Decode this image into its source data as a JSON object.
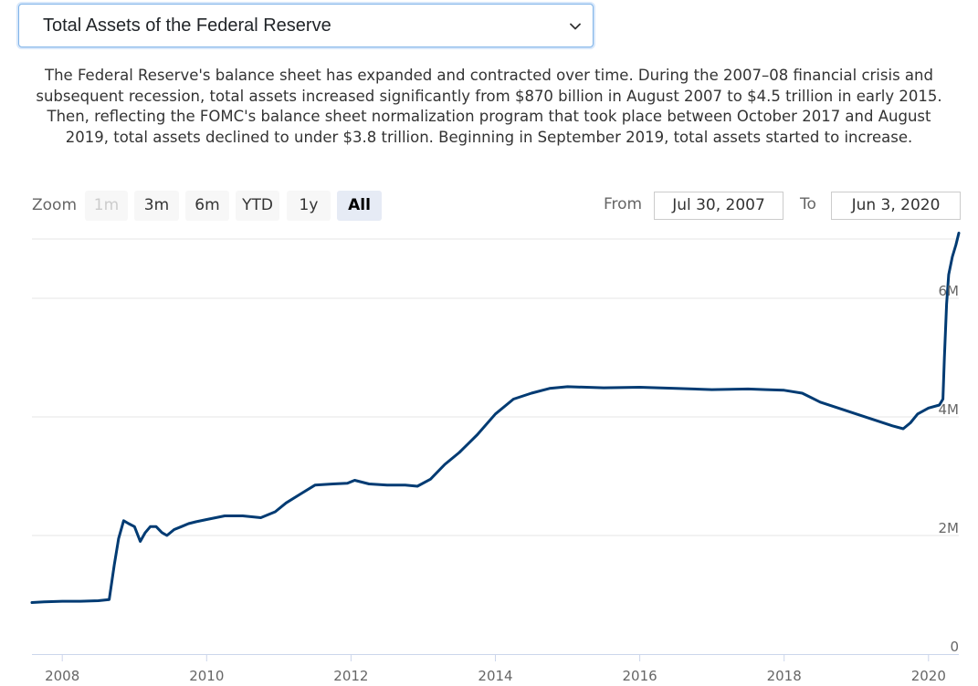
{
  "selector": {
    "selected": "Total Assets of the Federal Reserve",
    "icon": "chevron-down-icon"
  },
  "description": "The Federal Reserve's balance sheet has expanded and contracted over time. During the 2007–08 financial crisis and subsequent recession, total assets increased significantly from $870 billion in August 2007 to $4.5 trillion in early 2015. Then, reflecting the FOMC's balance sheet normalization program that took place between October 2017 and August 2019, total assets declined to under $3.8 trillion. Beginning in September 2019, total assets started to increase.",
  "zoom": {
    "label": "Zoom",
    "buttons": [
      {
        "label": "1m",
        "state": "disabled"
      },
      {
        "label": "3m",
        "state": "normal"
      },
      {
        "label": "6m",
        "state": "normal"
      },
      {
        "label": "YTD",
        "state": "normal"
      },
      {
        "label": "1y",
        "state": "normal"
      },
      {
        "label": "All",
        "state": "selected"
      }
    ]
  },
  "range": {
    "from_label": "From",
    "from_value": "Jul 30, 2007",
    "to_label": "To",
    "to_value": "Jun 3, 2020"
  },
  "chart_data": {
    "type": "line",
    "title": "",
    "xlabel": "",
    "ylabel": "",
    "xlim": [
      2007.58,
      2020.42
    ],
    "ylim": [
      0,
      7000000
    ],
    "grid": true,
    "line_color": "#003b73",
    "x_ticks": [
      {
        "label": "2008",
        "value": 2008
      },
      {
        "label": "2010",
        "value": 2010
      },
      {
        "label": "2012",
        "value": 2012
      },
      {
        "label": "2014",
        "value": 2014
      },
      {
        "label": "2016",
        "value": 2016
      },
      {
        "label": "2018",
        "value": 2018
      },
      {
        "label": "2020",
        "value": 2020
      }
    ],
    "y_ticks": [
      {
        "label": "0",
        "value": 0
      },
      {
        "label": "2M",
        "value": 2000000
      },
      {
        "label": "4M",
        "value": 4000000
      },
      {
        "label": "6M",
        "value": 6000000
      }
    ],
    "series": [
      {
        "x": [
          2007.58,
          2007.75,
          2008.0,
          2008.25,
          2008.5,
          2008.65,
          2008.72,
          2008.78,
          2008.85,
          2008.92,
          2009.0,
          2009.08,
          2009.15,
          2009.22,
          2009.3,
          2009.38,
          2009.45,
          2009.55,
          2009.65,
          2009.75,
          2009.85,
          2010.0,
          2010.25,
          2010.5,
          2010.75,
          2010.95,
          2011.1,
          2011.3,
          2011.5,
          2011.75,
          2011.95,
          2012.05,
          2012.25,
          2012.5,
          2012.75,
          2012.92,
          2013.1,
          2013.3,
          2013.5,
          2013.75,
          2014.0,
          2014.25,
          2014.5,
          2014.75,
          2015.0,
          2015.5,
          2016.0,
          2016.5,
          2017.0,
          2017.5,
          2017.75,
          2018.0,
          2018.25,
          2018.5,
          2018.75,
          2019.0,
          2019.25,
          2019.5,
          2019.65,
          2019.75,
          2019.85,
          2020.0,
          2020.15,
          2020.2,
          2020.22,
          2020.25,
          2020.28,
          2020.33,
          2020.38,
          2020.42
        ],
        "y": [
          870000,
          880000,
          890000,
          890000,
          900000,
          920000,
          1500000,
          1950000,
          2250000,
          2200000,
          2150000,
          1900000,
          2050000,
          2150000,
          2150000,
          2050000,
          2000000,
          2100000,
          2150000,
          2200000,
          2230000,
          2270000,
          2330000,
          2330000,
          2300000,
          2400000,
          2550000,
          2700000,
          2850000,
          2870000,
          2880000,
          2930000,
          2870000,
          2850000,
          2850000,
          2830000,
          2950000,
          3200000,
          3400000,
          3700000,
          4050000,
          4300000,
          4400000,
          4480000,
          4510000,
          4490000,
          4500000,
          4480000,
          4460000,
          4470000,
          4460000,
          4450000,
          4400000,
          4250000,
          4150000,
          4050000,
          3950000,
          3850000,
          3800000,
          3900000,
          4050000,
          4150000,
          4200000,
          4300000,
          5000000,
          5900000,
          6400000,
          6700000,
          6900000,
          7100000
        ]
      }
    ]
  }
}
